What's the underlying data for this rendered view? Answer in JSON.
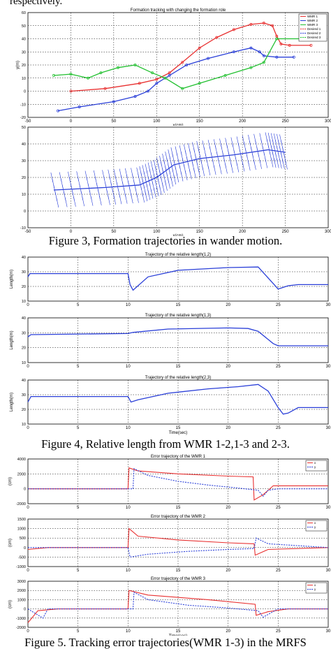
{
  "page": {
    "top_text": "respectively.",
    "captions": {
      "fig3": "Figure 3, Formation trajectories in wander motion.",
      "fig4": "Figure 4, Relative length from WMR 1-2,1-3 and 2-3.",
      "fig5": "Figure 5. Tracking error trajectories(WMR 1-3) in the MRFS"
    }
  },
  "chart_data": [
    {
      "type": "line",
      "title": "Formation tracking with changing the formation role",
      "xlabel": "x(cm)",
      "ylabel": "y(m)",
      "xlim": [
        -50,
        300
      ],
      "ylim": [
        -20,
        60
      ],
      "xticks": [
        "-50",
        "0",
        "50",
        "100",
        "150",
        "200",
        "250",
        "300"
      ],
      "yticks": [
        "60",
        "50",
        "40",
        "30",
        "20",
        "10",
        "0",
        "-10",
        "-20"
      ],
      "legend": [
        "WMR 1",
        "WMR 2",
        "WMR 3",
        "Desired 1",
        "Desired 2",
        "Desired 3"
      ],
      "legend_position": "top-right",
      "grid": true,
      "series": [
        {
          "name": "WMR 1",
          "color": "#e83030",
          "points": [
            [
              0,
              0
            ],
            [
              40,
              2
            ],
            [
              80,
              6
            ],
            [
              100,
              9
            ],
            [
              115,
              14
            ],
            [
              130,
              22
            ],
            [
              150,
              33
            ],
            [
              170,
              41
            ],
            [
              190,
              47
            ],
            [
              210,
              51
            ],
            [
              225,
              52
            ],
            [
              235,
              50
            ],
            [
              240,
              42
            ],
            [
              245,
              36
            ],
            [
              255,
              35
            ],
            [
              280,
              35
            ]
          ]
        },
        {
          "name": "WMR 2",
          "color": "#2a3fd8",
          "points": [
            [
              -15,
              -15
            ],
            [
              10,
              -12
            ],
            [
              50,
              -8
            ],
            [
              75,
              -4
            ],
            [
              90,
              0
            ],
            [
              100,
              6
            ],
            [
              115,
              12
            ],
            [
              135,
              20
            ],
            [
              160,
              25
            ],
            [
              190,
              30
            ],
            [
              210,
              33
            ],
            [
              220,
              30
            ],
            [
              225,
              27
            ],
            [
              240,
              26
            ],
            [
              260,
              26
            ]
          ]
        },
        {
          "name": "WMR 3",
          "color": "#22c030",
          "points": [
            [
              -20,
              12
            ],
            [
              0,
              13
            ],
            [
              20,
              10
            ],
            [
              35,
              14
            ],
            [
              55,
              18
            ],
            [
              75,
              20
            ],
            [
              95,
              14
            ],
            [
              110,
              10
            ],
            [
              130,
              2
            ],
            [
              150,
              6
            ],
            [
              180,
              12
            ],
            [
              210,
              18
            ],
            [
              225,
              22
            ],
            [
              240,
              40
            ],
            [
              270,
              40
            ]
          ]
        }
      ]
    },
    {
      "type": "line",
      "xlim": [
        -50,
        300
      ],
      "ylim": [
        -20,
        60
      ],
      "xticks": [
        "-50",
        "0",
        "50",
        "100",
        "150",
        "200",
        "250",
        "300"
      ],
      "yticks": [
        "50",
        "40",
        "30",
        "20",
        "10",
        "0",
        "-10"
      ],
      "xlabel": "x(cm)",
      "grid": true,
      "series": [
        {
          "name": "",
          "color": "#2a3fd8",
          "points": [
            [
              -20,
              10
            ],
            [
              40,
              12
            ],
            [
              80,
              14
            ],
            [
              100,
              20
            ],
            [
              120,
              30
            ],
            [
              150,
              35
            ],
            [
              190,
              38
            ],
            [
              230,
              42
            ],
            [
              250,
              40
            ]
          ]
        }
      ]
    },
    {
      "type": "line",
      "title": "Trajectory of the relative length(1,2)",
      "ylabel": "Length(m)",
      "xlim": [
        0,
        30
      ],
      "ylim": [
        0,
        40
      ],
      "xticks": [
        "0",
        "5",
        "10",
        "15",
        "20",
        "25",
        "30"
      ],
      "yticks": [
        "40",
        "30",
        "20",
        "10"
      ],
      "grid": true,
      "series": [
        {
          "name": "",
          "color": "#2a3fd8",
          "points": [
            [
              0,
              22
            ],
            [
              0.2,
              25
            ],
            [
              10,
              25
            ],
            [
              10.2,
              15
            ],
            [
              10.5,
              10
            ],
            [
              12,
              22
            ],
            [
              15,
              28
            ],
            [
              20,
              30.5
            ],
            [
              23,
              31
            ],
            [
              24.5,
              16
            ],
            [
              25,
              11
            ],
            [
              26,
              14
            ],
            [
              27,
              15
            ],
            [
              30,
              15
            ]
          ]
        }
      ]
    },
    {
      "type": "line",
      "title": "Trajectory of the relative length(1,3)",
      "ylabel": "Length(m)",
      "xlim": [
        0,
        30
      ],
      "ylim": [
        0,
        40
      ],
      "xticks": [
        "0",
        "5",
        "10",
        "15",
        "20",
        "25",
        "30"
      ],
      "yticks": [
        "40",
        "30",
        "20",
        "10"
      ],
      "grid": true,
      "series": [
        {
          "name": "",
          "color": "#2a3fd8",
          "points": [
            [
              0,
              23
            ],
            [
              0.3,
              25
            ],
            [
              10,
              26
            ],
            [
              10.5,
              27
            ],
            [
              14,
              30
            ],
            [
              20,
              31
            ],
            [
              22,
              30.5
            ],
            [
              23,
              28
            ],
            [
              24.5,
              17
            ],
            [
              25,
              15
            ],
            [
              30,
              15
            ]
          ]
        }
      ]
    },
    {
      "type": "line",
      "title": "Trajectory of the relative length(2,3)",
      "xlabel": "Time(sec)",
      "ylabel": "Length(m)",
      "xlim": [
        0,
        30
      ],
      "ylim": [
        0,
        40
      ],
      "xticks": [
        "0",
        "5",
        "10",
        "15",
        "20",
        "25",
        "30"
      ],
      "yticks": [
        "40",
        "30",
        "20",
        "10"
      ],
      "grid": true,
      "series": [
        {
          "name": "",
          "color": "#2a3fd8",
          "points": [
            [
              0,
              20
            ],
            [
              0.3,
              25
            ],
            [
              10,
              25
            ],
            [
              10.3,
              20
            ],
            [
              11,
              22
            ],
            [
              14,
              28
            ],
            [
              18,
              32
            ],
            [
              21,
              34
            ],
            [
              23,
              36
            ],
            [
              24,
              30
            ],
            [
              25,
              15
            ],
            [
              25.5,
              9
            ],
            [
              26,
              10
            ],
            [
              27,
              15
            ],
            [
              30,
              15
            ]
          ]
        }
      ]
    },
    {
      "type": "line",
      "title": "Error trajectory of the WMR 1",
      "ylabel": "(cm)",
      "xlim": [
        0,
        30
      ],
      "ylim": [
        -2000,
        4000
      ],
      "xticks": [
        "0",
        "5",
        "10",
        "15",
        "20",
        "25",
        "30"
      ],
      "yticks": [
        "4000",
        "2000",
        "0",
        "-2000"
      ],
      "legend": [
        "x",
        "y"
      ],
      "legend_position": "top-right",
      "grid": true,
      "series": [
        {
          "name": "x",
          "color": "#e83030",
          "points": [
            [
              0,
              0
            ],
            [
              10,
              0
            ],
            [
              10.1,
              2800
            ],
            [
              11,
              2400
            ],
            [
              15,
              2000
            ],
            [
              20,
              1700
            ],
            [
              22.5,
              1600
            ],
            [
              22.6,
              -1500
            ],
            [
              23.5,
              -800
            ],
            [
              24.5,
              400
            ],
            [
              30,
              400
            ]
          ]
        },
        {
          "name": "y",
          "color": "#2a3fd8",
          "dash": true,
          "points": [
            [
              0,
              0
            ],
            [
              10.5,
              0
            ],
            [
              10.6,
              2700
            ],
            [
              12,
              1800
            ],
            [
              15,
              1000
            ],
            [
              18,
              500
            ],
            [
              21,
              100
            ],
            [
              23,
              -200
            ],
            [
              23.5,
              -1000
            ],
            [
              24,
              -200
            ],
            [
              25,
              0
            ],
            [
              30,
              0
            ]
          ]
        }
      ]
    },
    {
      "type": "line",
      "title": "Error trajectory of the WMR 2",
      "ylabel": "(cm)",
      "xlim": [
        0,
        30
      ],
      "ylim": [
        -1000,
        1500
      ],
      "xticks": [
        "0",
        "5",
        "10",
        "15",
        "20",
        "25",
        "30"
      ],
      "yticks": [
        "1500",
        "1000",
        "500",
        "0",
        "-500",
        "-1000"
      ],
      "legend": [
        "x",
        "y"
      ],
      "legend_position": "top-right",
      "grid": true,
      "series": [
        {
          "name": "x",
          "color": "#e83030",
          "points": [
            [
              0,
              -100
            ],
            [
              2,
              0
            ],
            [
              10,
              0
            ],
            [
              10.1,
              1000
            ],
            [
              11,
              600
            ],
            [
              15,
              400
            ],
            [
              20,
              250
            ],
            [
              22.6,
              200
            ],
            [
              22.7,
              -400
            ],
            [
              24,
              -100
            ],
            [
              30,
              0
            ]
          ]
        },
        {
          "name": "y",
          "color": "#2a3fd8",
          "dash": true,
          "points": [
            [
              0,
              0
            ],
            [
              10,
              0
            ],
            [
              10.2,
              -500
            ],
            [
              12,
              -350
            ],
            [
              16,
              -200
            ],
            [
              20,
              -100
            ],
            [
              22.6,
              -50
            ],
            [
              22.8,
              500
            ],
            [
              24,
              200
            ],
            [
              30,
              0
            ]
          ]
        }
      ]
    },
    {
      "type": "line",
      "title": "Error trajectory of the WMR 3",
      "xlabel": "Time(sec)",
      "ylabel": "(cm)",
      "xlim": [
        0,
        30
      ],
      "ylim": [
        -2000,
        3000
      ],
      "xticks": [
        "0",
        "5",
        "10",
        "15",
        "20",
        "25",
        "30"
      ],
      "yticks": [
        "3000",
        "2000",
        "1000",
        "0",
        "-1000",
        "-2000"
      ],
      "legend": [
        "x",
        "y"
      ],
      "legend_position": "top-right",
      "grid": true,
      "series": [
        {
          "name": "x",
          "color": "#e83030",
          "points": [
            [
              0,
              -1500
            ],
            [
              1,
              -200
            ],
            [
              3,
              0
            ],
            [
              10,
              0
            ],
            [
              10.1,
              2000
            ],
            [
              12,
              1500
            ],
            [
              18,
              1000
            ],
            [
              22.7,
              500
            ],
            [
              22.8,
              -700
            ],
            [
              24,
              -300
            ],
            [
              26,
              0
            ],
            [
              30,
              0
            ]
          ]
        },
        {
          "name": "y",
          "color": "#2a3fd8",
          "dash": true,
          "points": [
            [
              0,
              0
            ],
            [
              1.5,
              -1000
            ],
            [
              2,
              0
            ],
            [
              10.5,
              0
            ],
            [
              10.6,
              1800
            ],
            [
              12,
              1000
            ],
            [
              16,
              400
            ],
            [
              20,
              100
            ],
            [
              23,
              -200
            ],
            [
              23.5,
              -900
            ],
            [
              25,
              0
            ],
            [
              30,
              0
            ]
          ]
        }
      ]
    }
  ]
}
